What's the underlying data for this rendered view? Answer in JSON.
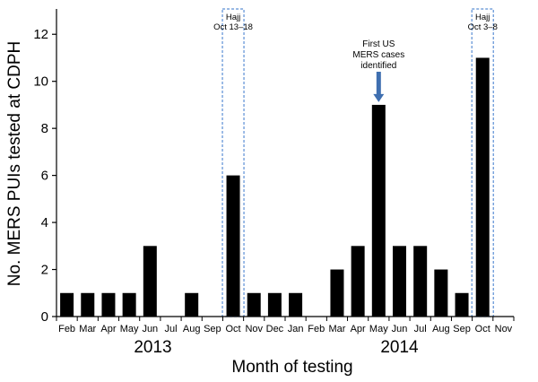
{
  "chart_data": {
    "type": "bar",
    "title": "",
    "xlabel": "Month of testing",
    "ylabel": "No. MERS PUIs tested at CDPH",
    "ylim": [
      0,
      13
    ],
    "yticks": [
      0,
      2,
      4,
      6,
      8,
      10,
      12
    ],
    "grid": false,
    "categories": [
      "Feb",
      "Mar",
      "Apr",
      "May",
      "Jun",
      "Jul",
      "Aug",
      "Sep",
      "Oct",
      "Nov",
      "Dec",
      "Jan",
      "Feb",
      "Mar",
      "Apr",
      "May",
      "Jun",
      "Jul",
      "Aug",
      "Sep",
      "Oct",
      "Nov"
    ],
    "values": [
      1,
      1,
      1,
      1,
      3,
      0,
      1,
      0,
      6,
      1,
      1,
      1,
      0,
      2,
      3,
      9,
      3,
      3,
      2,
      1,
      11,
      0
    ],
    "years": [
      {
        "label": "2013",
        "from_index": 0,
        "to_index": 10
      },
      {
        "label": "2014",
        "from_index": 11,
        "to_index": 21
      }
    ],
    "bar_color": "#000000",
    "highlight_boxes": [
      {
        "category_index": 8,
        "line1": "Hajj",
        "line2": "Oct 13–18",
        "color": "#5b8fd4"
      },
      {
        "category_index": 20,
        "line1": "Hajj",
        "line2": "Oct 3–8",
        "color": "#5b8fd4"
      }
    ],
    "annotation": {
      "category_index": 15,
      "lines": [
        "First US",
        "MERS cases",
        "identified"
      ],
      "arrow_color": "#3f6fb0"
    }
  }
}
